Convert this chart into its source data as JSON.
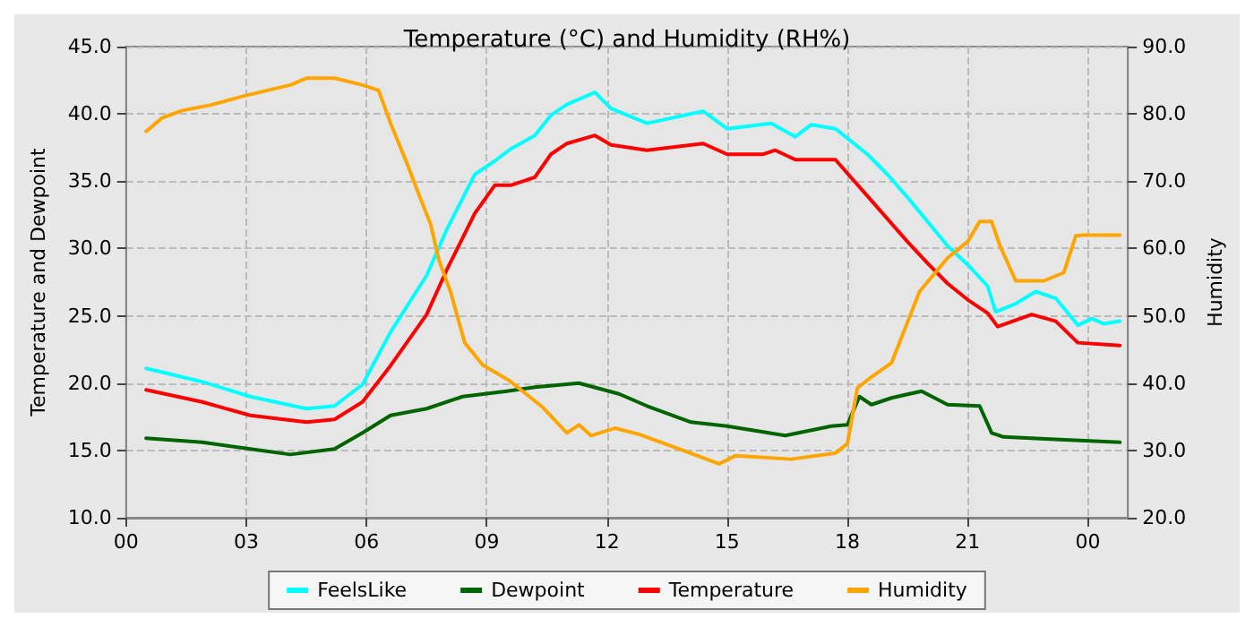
{
  "chart_data": {
    "type": "line",
    "title": "Temperature (°C) and Humidity (RH%)",
    "ylabel": "Temperature and Dewpoint",
    "y2label": "Humidity",
    "xlim": [
      0,
      25
    ],
    "xticks": [
      {
        "value": 0,
        "label": "00"
      },
      {
        "value": 3,
        "label": "03"
      },
      {
        "value": 6,
        "label": "06"
      },
      {
        "value": 9,
        "label": "09"
      },
      {
        "value": 12,
        "label": "12"
      },
      {
        "value": 15,
        "label": "15"
      },
      {
        "value": 18,
        "label": "18"
      },
      {
        "value": 21,
        "label": "21"
      },
      {
        "value": 24,
        "label": "00"
      }
    ],
    "ylim": [
      10,
      45
    ],
    "yticks": [
      {
        "value": 10,
        "label": "10.0"
      },
      {
        "value": 15,
        "label": "15.0"
      },
      {
        "value": 20,
        "label": "20.0"
      },
      {
        "value": 25,
        "label": "25.0"
      },
      {
        "value": 30,
        "label": "30.0"
      },
      {
        "value": 35,
        "label": "35.0"
      },
      {
        "value": 40,
        "label": "40.0"
      },
      {
        "value": 45,
        "label": "45.0"
      }
    ],
    "y2lim": [
      20,
      90
    ],
    "y2ticks": [
      {
        "value": 20,
        "label": "20.0"
      },
      {
        "value": 30,
        "label": "30.0"
      },
      {
        "value": 40,
        "label": "40.0"
      },
      {
        "value": 50,
        "label": "50.0"
      },
      {
        "value": 60,
        "label": "60.0"
      },
      {
        "value": 70,
        "label": "70.0"
      },
      {
        "value": 80,
        "label": "80.0"
      },
      {
        "value": 90,
        "label": "90.0"
      }
    ],
    "grid": true,
    "legend": "bottom",
    "marker": "none",
    "line_style": "solid",
    "series": [
      {
        "name": "FeelsLike",
        "color": "#00ffff",
        "x": [
          0.5,
          1.9,
          3.1,
          4.5,
          5.2,
          5.9,
          6.6,
          7.5,
          8.0,
          8.7,
          9.2,
          9.6,
          10.2,
          10.6,
          11.0,
          11.7,
          12.1,
          13.0,
          14.4,
          15.0,
          16.1,
          16.7,
          17.1,
          17.7,
          18.5,
          19.0,
          19.5,
          20.0,
          20.5,
          21.0,
          21.5,
          21.7,
          22.2,
          22.7,
          23.2,
          23.75,
          24.1,
          24.4,
          24.8
        ],
        "values": [
          21.1,
          20.1,
          19.0,
          18.1,
          18.3,
          19.9,
          23.8,
          28.0,
          31.4,
          35.5,
          36.5,
          37.4,
          38.4,
          39.9,
          40.7,
          41.6,
          40.4,
          39.3,
          40.2,
          38.9,
          39.3,
          38.3,
          39.2,
          38.9,
          37.0,
          35.5,
          33.8,
          32.0,
          30.2,
          28.8,
          27.2,
          25.3,
          25.9,
          26.8,
          26.3,
          24.3,
          24.8,
          24.4,
          24.6
        ]
      },
      {
        "name": "Dewpoint",
        "color": "#006400",
        "x": [
          0.5,
          1.9,
          3.1,
          4.1,
          5.2,
          5.9,
          6.6,
          7.5,
          8.4,
          9.5,
          10.2,
          11.3,
          12.3,
          13.0,
          14.1,
          15.0,
          16.45,
          17.6,
          18.0,
          18.3,
          18.6,
          19.1,
          19.85,
          20.5,
          21.3,
          21.6,
          21.9,
          23.3,
          24.8
        ],
        "values": [
          15.9,
          15.6,
          15.1,
          14.7,
          15.1,
          16.3,
          17.6,
          18.1,
          19.0,
          19.4,
          19.7,
          20.0,
          19.2,
          18.3,
          17.1,
          16.8,
          16.1,
          16.8,
          16.9,
          19.0,
          18.4,
          18.9,
          19.4,
          18.4,
          18.3,
          16.3,
          16.0,
          15.8,
          15.6
        ]
      },
      {
        "name": "Temperature",
        "color": "#ff0000",
        "x": [
          0.5,
          1.9,
          3.1,
          4.5,
          5.2,
          5.9,
          6.6,
          7.5,
          8.0,
          8.7,
          9.2,
          9.6,
          10.2,
          10.6,
          11.0,
          11.7,
          12.1,
          13.0,
          14.4,
          15.0,
          15.9,
          16.2,
          16.7,
          17.7,
          18.5,
          19.0,
          19.5,
          20.0,
          20.5,
          21.0,
          21.5,
          21.75,
          22.6,
          23.2,
          23.75,
          24.8
        ],
        "values": [
          19.5,
          18.6,
          17.6,
          17.1,
          17.3,
          18.6,
          21.3,
          25.1,
          28.4,
          32.6,
          34.7,
          34.7,
          35.3,
          37.0,
          37.8,
          38.4,
          37.7,
          37.3,
          37.8,
          37.0,
          37.0,
          37.3,
          36.6,
          36.6,
          33.9,
          32.2,
          30.5,
          28.9,
          27.4,
          26.2,
          25.2,
          24.2,
          25.1,
          24.6,
          23.0,
          22.8
        ]
      },
      {
        "name": "Humidity",
        "color": "#ffa500",
        "axis": "y2",
        "x": [
          0.5,
          0.9,
          1.4,
          2.1,
          2.9,
          3.6,
          4.1,
          4.5,
          5.2,
          5.9,
          6.3,
          6.6,
          7.0,
          7.3,
          7.6,
          7.8,
          8.1,
          8.45,
          8.9,
          9.5,
          9.6,
          10.4,
          11.0,
          11.3,
          11.6,
          12.2,
          12.8,
          13.9,
          14.8,
          15.2,
          16.6,
          17.7,
          18.0,
          18.25,
          18.6,
          19.1,
          19.8,
          20.5,
          21.0,
          21.3,
          21.6,
          21.8,
          22.2,
          22.9,
          23.4,
          23.7,
          23.9,
          24.8
        ],
        "values": [
          77.4,
          79.4,
          80.5,
          81.3,
          82.6,
          83.6,
          84.3,
          85.3,
          85.3,
          84.3,
          83.5,
          78.6,
          72.8,
          68.1,
          63.6,
          58.4,
          53.5,
          46.0,
          42.7,
          40.6,
          40.2,
          36.4,
          32.6,
          33.8,
          32.2,
          33.3,
          32.4,
          30.0,
          28.0,
          29.2,
          28.7,
          29.6,
          31.0,
          39.3,
          40.9,
          43.0,
          53.6,
          58.6,
          61.0,
          64.0,
          64.0,
          60.5,
          55.2,
          55.2,
          56.4,
          61.9,
          62.0,
          62.0
        ]
      }
    ]
  }
}
